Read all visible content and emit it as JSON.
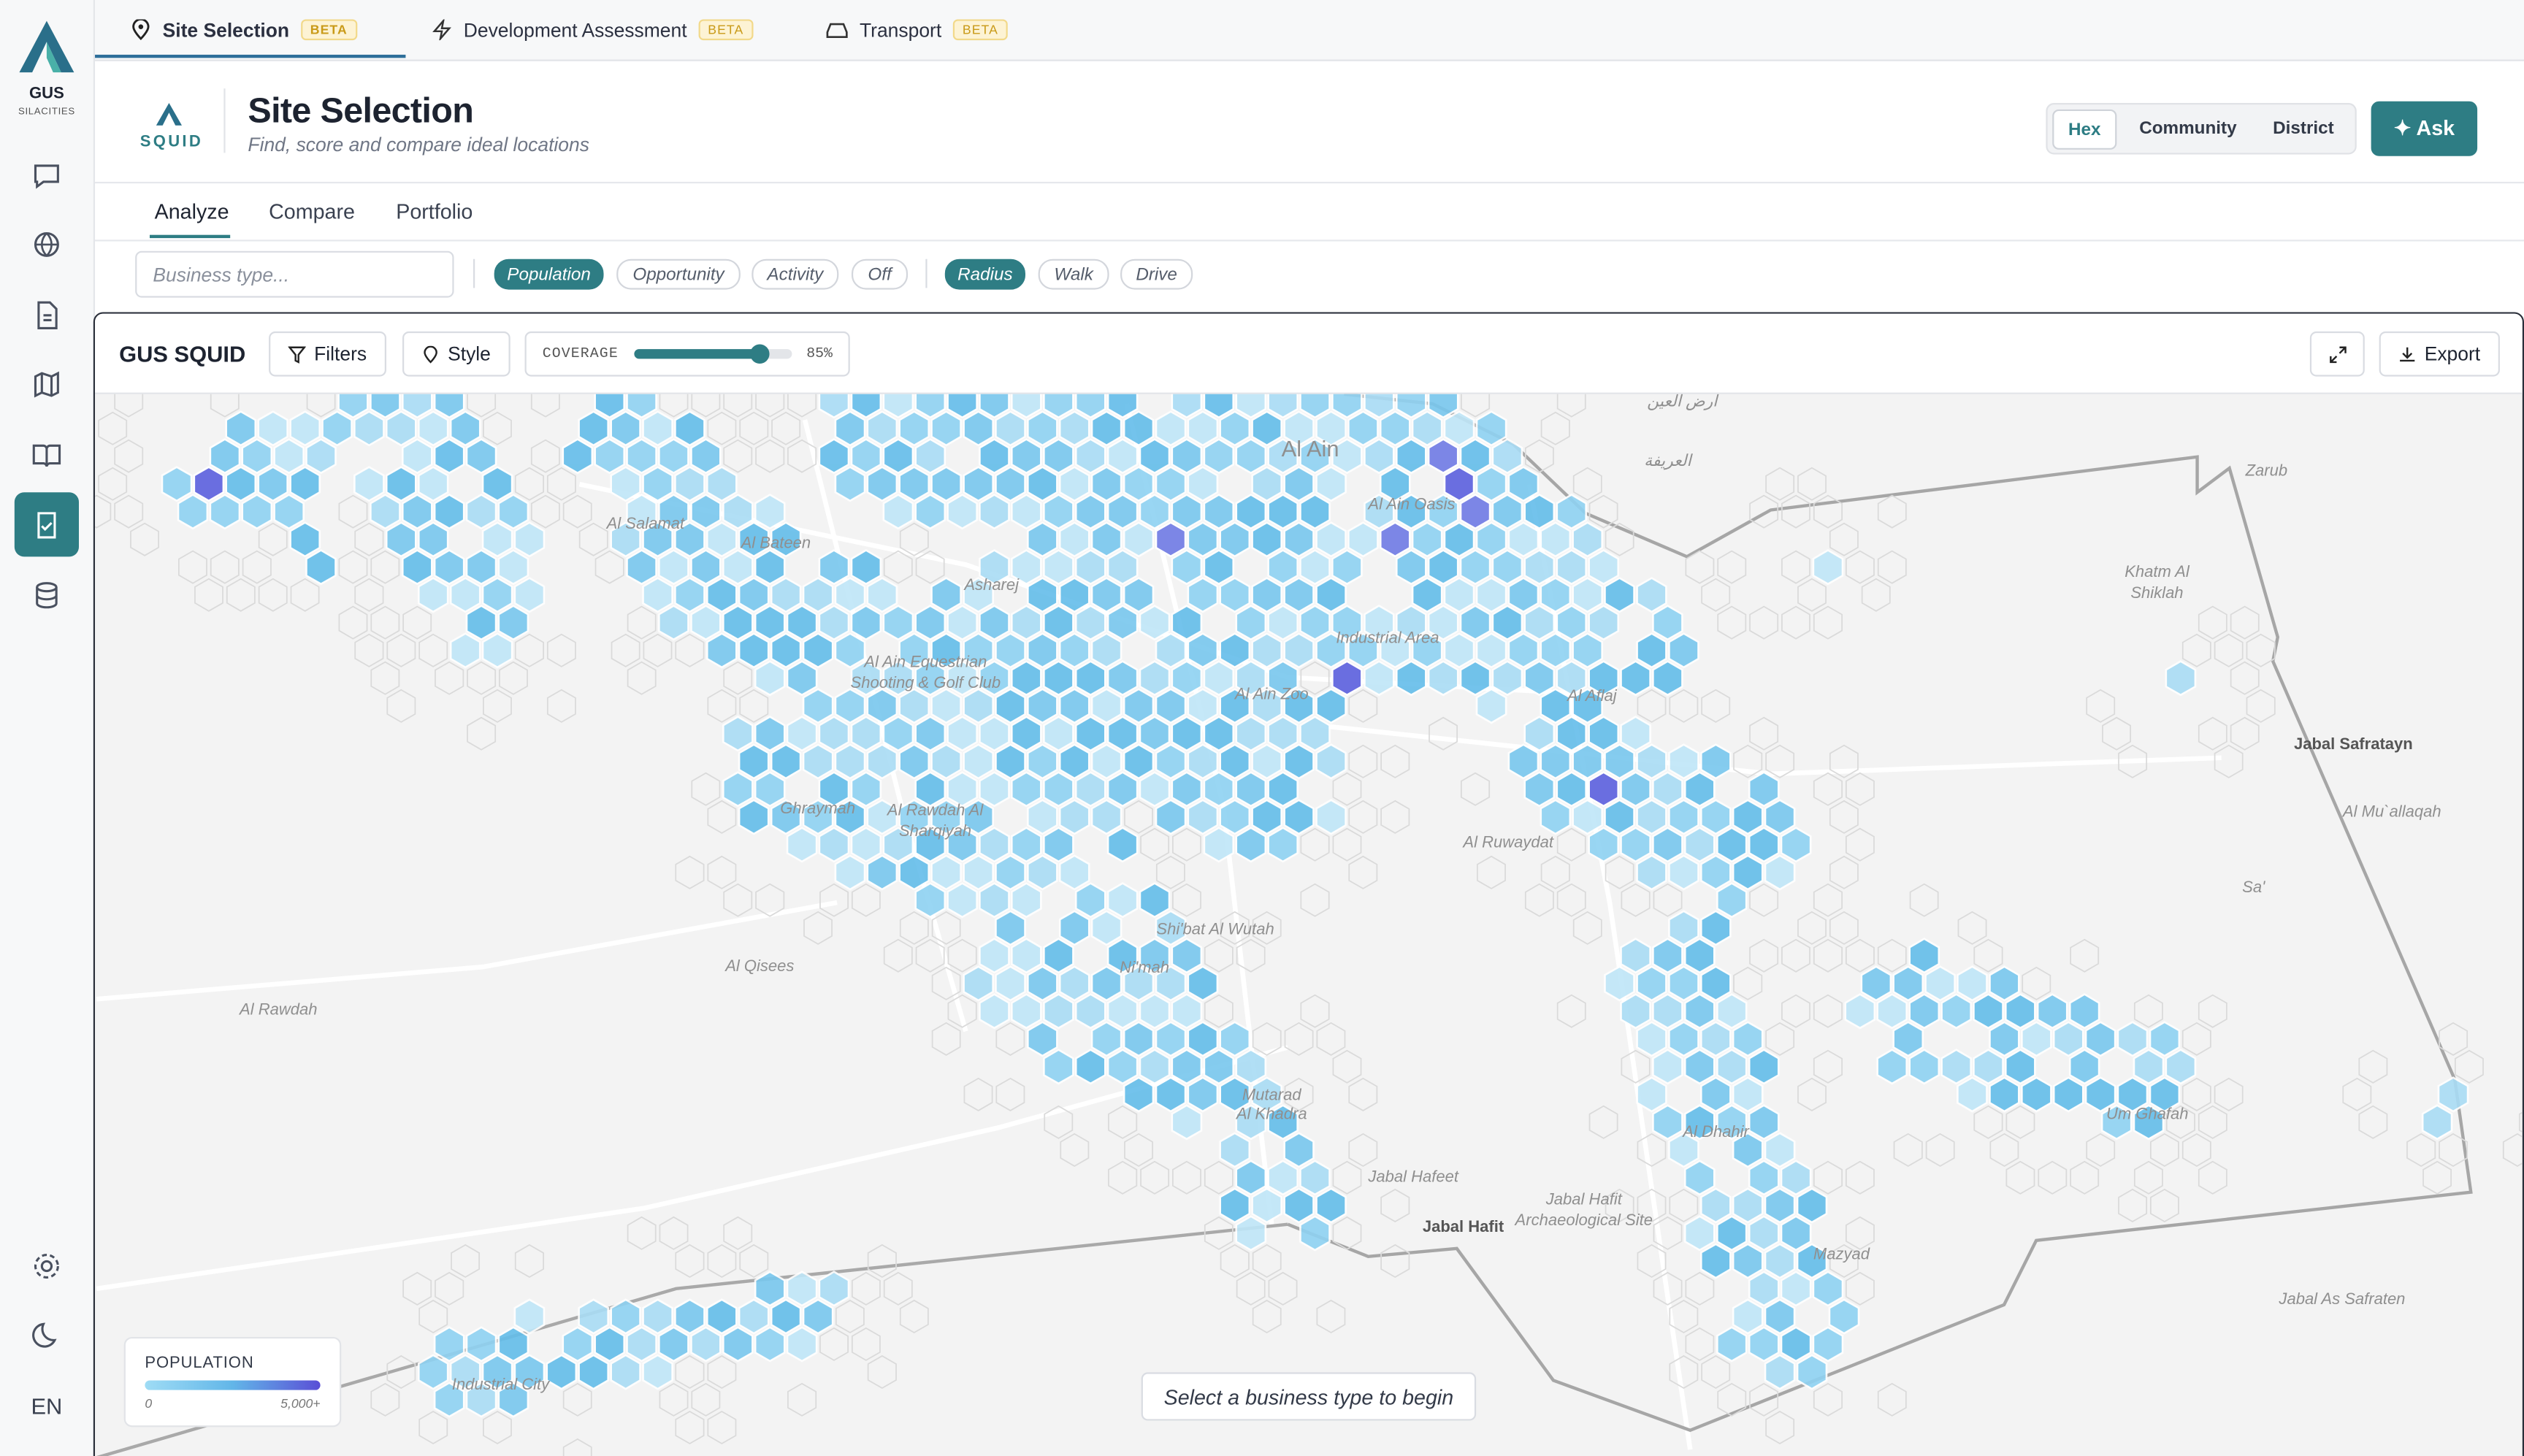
{
  "sidebar": {
    "brand": "GUS",
    "brand_sub": "SILACITIES",
    "language": "EN"
  },
  "tabs": [
    {
      "label": "Site Selection",
      "badge": "BETA"
    },
    {
      "label": "Development Assessment",
      "badge": "BETA"
    },
    {
      "label": "Transport",
      "badge": "BETA"
    }
  ],
  "header": {
    "logo_text": "SQUID",
    "title": "Site Selection",
    "subtitle": "Find, score and compare ideal locations",
    "view_toggle": [
      "Hex",
      "Community",
      "District"
    ],
    "ask": "✦ Ask"
  },
  "subnav": [
    "Analyze",
    "Compare",
    "Portfolio"
  ],
  "filters": {
    "search_placeholder": "Business type...",
    "layers": [
      "Population",
      "Opportunity",
      "Activity",
      "Off"
    ],
    "modes": [
      "Radius",
      "Walk",
      "Drive"
    ]
  },
  "map": {
    "title": "GUS SQUID",
    "filters_button": "Filters",
    "style_button": "Style",
    "coverage_label": "COVERAGE",
    "coverage": "85%",
    "export_button": "Export",
    "labels": [
      "أرض العين",
      "العريفة",
      "Al Ain",
      "Al Salamat",
      "Al Bateen",
      "Asharej",
      "Al Ain Oasis",
      "Industrial Area",
      "Al Ain Equestrian",
      "Shooting & Golf Club",
      "Al Ain Zoo",
      "Al Aflaj",
      "Zarub",
      "Khatm Al",
      "Shiklah",
      "Jabal Safratayn",
      "Al Mu`allaqah",
      "Sa'",
      "Al Ruwaydat",
      "Ghraymah",
      "Al Rawdah Al",
      "Sharqiyah",
      "Shi'bat Al Wutah",
      "Ni'mah",
      "Al Qisees",
      "Al Rawdah",
      "Mutarad",
      "Al Khadra",
      "Al Dhahir",
      "Um Ghafah",
      "Jabal Hafeet",
      "Jabal Hafit",
      "Jabal Hafit",
      "Archaeological Site",
      "Mazyad",
      "Jabal As Safraten",
      "Industrial City"
    ],
    "legend": {
      "title": "POPULATION",
      "min": "0",
      "max": "5,000+"
    },
    "hint": "Select a business type to begin"
  }
}
